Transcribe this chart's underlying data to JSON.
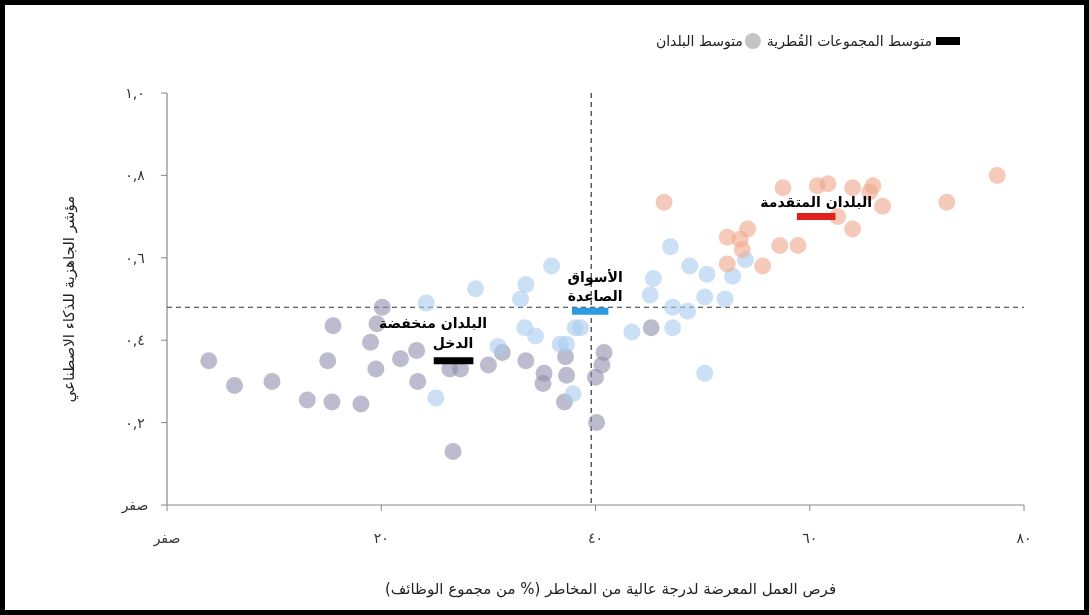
{
  "chart_data": {
    "type": "scatter",
    "xlabel": "فرص العمل المعرضة لدرجة عالية من المخاطر  (% من مجموع الوظائف)",
    "ylabel": "مؤشر الجاهزية للذكاء الاصطناعي",
    "xlim": [
      0,
      80
    ],
    "ylim": [
      0,
      1
    ],
    "xticks": [
      {
        "value": 0,
        "label": "صفر"
      },
      {
        "value": 20,
        "label": "٢٠"
      },
      {
        "value": 40,
        "label": "٤٠"
      },
      {
        "value": 60,
        "label": "٦٠"
      },
      {
        "value": 80,
        "label": "٨٠"
      }
    ],
    "yticks": [
      {
        "value": 0,
        "label": "صفر"
      },
      {
        "value": 0.2,
        "label": "٠,٢"
      },
      {
        "value": 0.4,
        "label": "٠,٤"
      },
      {
        "value": 0.6,
        "label": "٠,٦"
      },
      {
        "value": 0.8,
        "label": "٠,٨"
      },
      {
        "value": 1,
        "label": "١,٠"
      }
    ],
    "legend": "top",
    "grid": false,
    "ref_lines": [
      {
        "axis": "x",
        "value": 39.6,
        "line_style": "dashed",
        "color": "#333333"
      },
      {
        "axis": "y",
        "value": 0.48,
        "line_style": "dashed",
        "color": "#333333"
      }
    ],
    "series": [
      {
        "name": "متوسط البلدان",
        "type": "scatter",
        "marker": "circle",
        "color": "#c4c4c4",
        "x": [
          3.9,
          6.3,
          9.8,
          13.1,
          15.4,
          18.1,
          15.0,
          15.5,
          19.0,
          19.5,
          19.6,
          20.1,
          21.8,
          23.3,
          23.4,
          26.4,
          26.7,
          27.4,
          30.0,
          31.3,
          33.5,
          35.2,
          35.1,
          37.2,
          37.3,
          37.1,
          40.0,
          40.1,
          40.8,
          45.2,
          40.6,
          35.9,
          28.8,
          24.2,
          33.5,
          33.0,
          34.4,
          30.9,
          36.7,
          38.1,
          25.1,
          37.9,
          47.0,
          48.8,
          50.4,
          45.4,
          45.1,
          50.2,
          52.1,
          54.0,
          52.8,
          47.2,
          48.6,
          47.2,
          43.4,
          50.2,
          38.6,
          37.3,
          33.4,
          46.4,
          77.5,
          72.8,
          66.8,
          65.6,
          64.0,
          61.7,
          60.7,
          62.6,
          64.0,
          54.2,
          53.5,
          52.3,
          57.2,
          58.9,
          55.6,
          52.3,
          53.7,
          57.5,
          65.9
        ],
        "values": [
          0.35,
          0.29,
          0.3,
          0.255,
          0.25,
          0.245,
          0.35,
          0.435,
          0.395,
          0.33,
          0.44,
          0.48,
          0.355,
          0.375,
          0.3,
          0.33,
          0.13,
          0.33,
          0.34,
          0.37,
          0.35,
          0.32,
          0.295,
          0.36,
          0.315,
          0.25,
          0.31,
          0.2,
          0.37,
          0.43,
          0.34,
          0.58,
          0.525,
          0.49,
          0.535,
          0.5,
          0.41,
          0.385,
          0.39,
          0.43,
          0.26,
          0.27,
          0.627,
          0.58,
          0.56,
          0.55,
          0.51,
          0.505,
          0.5,
          0.595,
          0.555,
          0.48,
          0.47,
          0.43,
          0.42,
          0.32,
          0.43,
          0.39,
          0.43,
          0.735,
          0.8,
          0.735,
          0.725,
          0.76,
          0.77,
          0.78,
          0.775,
          0.7,
          0.67,
          0.67,
          0.645,
          0.65,
          0.63,
          0.63,
          0.58,
          0.585,
          0.62,
          0.77,
          0.775
        ],
        "colors": [
          "#8f90ad",
          "#8f90ad",
          "#8f90ad",
          "#8f90ad",
          "#8f90ad",
          "#8f90ad",
          "#8f90ad",
          "#8f90ad",
          "#8f90ad",
          "#8f90ad",
          "#8f90ad",
          "#8f90ad",
          "#8f90ad",
          "#8f90ad",
          "#8f90ad",
          "#8f90ad",
          "#8f90ad",
          "#8f90ad",
          "#8f90ad",
          "#8f90ad",
          "#8f90ad",
          "#8f90ad",
          "#8f90ad",
          "#8f90ad",
          "#8f90ad",
          "#8f90ad",
          "#8f90ad",
          "#8f90ad",
          "#8f90ad",
          "#8f90ad",
          "#8f90ad",
          "#a9cbec",
          "#a9cbec",
          "#a9cbec",
          "#a9cbec",
          "#a9cbec",
          "#a9cbec",
          "#a9cbec",
          "#a9cbec",
          "#a9cbec",
          "#a9cbec",
          "#a9cbec",
          "#a9cbec",
          "#a9cbec",
          "#a9cbec",
          "#a9cbec",
          "#a9cbec",
          "#a9cbec",
          "#a9cbec",
          "#a9cbec",
          "#a9cbec",
          "#a9cbec",
          "#a9cbec",
          "#a9cbec",
          "#a9cbec",
          "#a9cbec",
          "#a9cbec",
          "#a9cbec",
          "#a9cbec",
          "#f0a68c",
          "#f0a68c",
          "#f0a68c",
          "#f0a68c",
          "#f0a68c",
          "#f0a68c",
          "#f0a68c",
          "#f0a68c",
          "#f0a68c",
          "#f0a68c",
          "#f0a68c",
          "#f0a68c",
          "#f0a68c",
          "#f0a68c",
          "#f0a68c",
          "#f0a68c",
          "#f0a68c",
          "#f0a68c",
          "#f0a68c",
          "#f0a68c"
        ]
      },
      {
        "name": "متوسط المجموعات القُطرية",
        "type": "line",
        "line_style": "solid",
        "color": "#000000",
        "x": [
          24.9,
          28.6
        ],
        "values": [
          0.35,
          0.35
        ]
      },
      {
        "type": "line",
        "line_style": "solid",
        "color": "#2e9be0",
        "x": [
          37.8,
          41.2
        ],
        "values": [
          0.47,
          0.47
        ]
      },
      {
        "type": "line",
        "line_style": "solid",
        "color": "#e0201c",
        "x": [
          58.8,
          62.4
        ],
        "values": [
          0.7,
          0.7
        ]
      }
    ],
    "annotations": [
      {
        "text": "البلدان منخفضة الدخل",
        "x": 26.7,
        "y": 0.35
      },
      {
        "text": "الأسواق الصاعدة",
        "x": 39.5,
        "y": 0.47
      },
      {
        "text": "البلدان المتقدمة",
        "x": 60.6,
        "y": 0.7
      }
    ]
  }
}
